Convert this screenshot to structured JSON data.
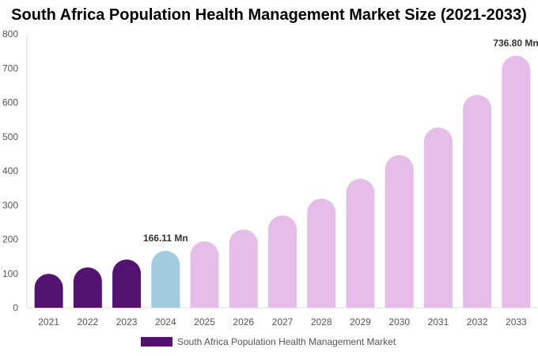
{
  "chart_data": {
    "type": "bar",
    "title": "South Africa Population Health Management Market Size (2021-2033)",
    "categories": [
      "2021",
      "2022",
      "2023",
      "2024",
      "2025",
      "2026",
      "2027",
      "2028",
      "2029",
      "2030",
      "2031",
      "2032",
      "2033"
    ],
    "series": [
      {
        "name": "South Africa Population Health Management Market",
        "values": [
          99,
          118,
          141,
          166.11,
          194,
          229,
          270,
          319,
          377,
          446,
          527,
          622,
          736.8
        ]
      }
    ],
    "ylim": [
      0,
      800
    ],
    "yticks": [
      0,
      100,
      200,
      300,
      400,
      500,
      600,
      700,
      800
    ],
    "data_labels": [
      {
        "category": "2024",
        "text": "166.11 Mn"
      },
      {
        "category": "2033",
        "text": "736.80 Mn"
      }
    ],
    "colors": {
      "historical": "#541370",
      "base_year": "#a3cbe0",
      "forecast": "#e6bde9"
    },
    "grid": false,
    "legend_placement": "bottom"
  }
}
